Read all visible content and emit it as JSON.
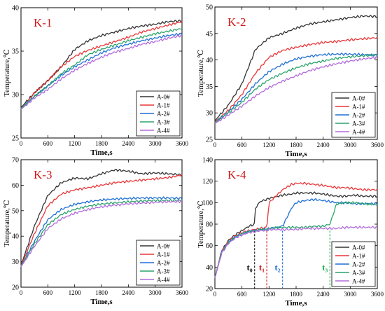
{
  "figure": {
    "colors": {
      "A-0#": "#333333",
      "A-1#": "#e8373a",
      "A-2#": "#1f6fd6",
      "A-3#": "#2aa36b",
      "A-4#": "#b26bdb",
      "label": "#d01818"
    }
  },
  "chart_data": [
    {
      "type": "line",
      "title": "K-1",
      "xlabel": "Time,s",
      "ylabel": "Temperature,℃",
      "xlim": [
        0,
        3600
      ],
      "ylim": [
        25,
        40
      ],
      "xticks": [
        0,
        600,
        1200,
        1800,
        2400,
        3000,
        3600
      ],
      "yticks": [
        25,
        30,
        35,
        40
      ],
      "legend_position": "bottom-right",
      "x": [
        0,
        300,
        600,
        900,
        1200,
        1500,
        1800,
        2100,
        2400,
        2700,
        3000,
        3300,
        3600
      ],
      "series": [
        {
          "name": "A-0#",
          "values": [
            28.5,
            30.2,
            31.6,
            33.2,
            35.2,
            36.2,
            36.8,
            37.2,
            37.6,
            37.9,
            38.1,
            38.4,
            38.5
          ]
        },
        {
          "name": "A-1#",
          "values": [
            28.3,
            30.2,
            31.6,
            33.2,
            34.4,
            35.1,
            35.6,
            36.1,
            36.6,
            37.2,
            37.6,
            38.0,
            38.4
          ]
        },
        {
          "name": "A-2#",
          "values": [
            28.4,
            29.8,
            31.0,
            32.2,
            33.2,
            34.0,
            34.8,
            35.4,
            35.8,
            36.2,
            36.5,
            36.8,
            37.0
          ]
        },
        {
          "name": "A-3#",
          "values": [
            28.4,
            29.8,
            31.0,
            32.4,
            33.4,
            34.6,
            35.2,
            35.7,
            36.2,
            36.6,
            37.0,
            37.3,
            37.6
          ]
        },
        {
          "name": "A-4#",
          "values": [
            28.3,
            29.6,
            30.6,
            31.8,
            32.8,
            33.6,
            34.3,
            34.9,
            35.3,
            35.8,
            36.1,
            36.5,
            36.8
          ]
        }
      ]
    },
    {
      "type": "line",
      "title": "K-2",
      "xlabel": "Time,s",
      "ylabel": "Temperature,℃",
      "xlim": [
        0,
        3600
      ],
      "ylim": [
        25,
        50
      ],
      "xticks": [
        0,
        600,
        1200,
        1800,
        2400,
        3000,
        3600
      ],
      "yticks": [
        25,
        30,
        35,
        40,
        45,
        50
      ],
      "legend_position": "bottom-right",
      "x": [
        0,
        300,
        600,
        900,
        1200,
        1500,
        1800,
        2100,
        2400,
        2700,
        3000,
        3300,
        3600
      ],
      "series": [
        {
          "name": "A-0#",
          "values": [
            28.5,
            31.5,
            35.5,
            42.0,
            44.2,
            45.0,
            46.0,
            46.8,
            47.2,
            47.6,
            48.0,
            48.3,
            48.2
          ]
        },
        {
          "name": "A-1#",
          "values": [
            28.3,
            30.5,
            33.5,
            37.5,
            40.5,
            41.8,
            42.4,
            42.9,
            43.3,
            43.5,
            43.8,
            44.0,
            44.2
          ]
        },
        {
          "name": "A-2#",
          "values": [
            28.2,
            30.2,
            32.6,
            35.5,
            37.8,
            39.2,
            40.2,
            40.7,
            41.0,
            41.1,
            41.1,
            41.0,
            40.9
          ]
        },
        {
          "name": "A-3#",
          "values": [
            28.2,
            30.0,
            32.0,
            34.5,
            36.3,
            37.5,
            38.5,
            39.3,
            39.8,
            40.3,
            40.6,
            40.8,
            41.0
          ]
        },
        {
          "name": "A-4#",
          "values": [
            28.0,
            29.6,
            31.3,
            33.2,
            34.8,
            36.0,
            37.0,
            38.0,
            38.7,
            39.3,
            39.8,
            40.2,
            40.5
          ]
        }
      ]
    },
    {
      "type": "line",
      "title": "K-3",
      "xlabel": "Time,s",
      "ylabel": "Temperature,℃",
      "xlim": [
        0,
        3600
      ],
      "ylim": [
        20,
        70
      ],
      "xticks": [
        0,
        600,
        1200,
        1800,
        2400,
        3000,
        3600
      ],
      "yticks": [
        20,
        30,
        40,
        50,
        60,
        70
      ],
      "legend_position": "bottom-right",
      "x": [
        0,
        300,
        600,
        900,
        1200,
        1500,
        1800,
        2100,
        2400,
        2700,
        3000,
        3300,
        3600
      ],
      "series": [
        {
          "name": "A-0#",
          "values": [
            28.5,
            44.0,
            56.0,
            61.0,
            62.8,
            62.5,
            64.5,
            66.0,
            65.5,
            64.5,
            64.8,
            64.5,
            64.0
          ]
        },
        {
          "name": "A-1#",
          "values": [
            28.3,
            41.0,
            52.0,
            56.5,
            58.2,
            59.0,
            60.0,
            61.0,
            61.5,
            62.0,
            62.5,
            63.0,
            64.0
          ]
        },
        {
          "name": "A-2#",
          "values": [
            28.2,
            38.0,
            46.5,
            50.5,
            52.5,
            53.5,
            54.2,
            54.6,
            54.8,
            55.0,
            55.0,
            55.0,
            54.8
          ]
        },
        {
          "name": "A-3#",
          "values": [
            28.2,
            37.0,
            44.5,
            48.5,
            50.5,
            51.8,
            52.6,
            53.1,
            53.5,
            53.8,
            54.0,
            54.0,
            54.0
          ]
        },
        {
          "name": "A-4#",
          "values": [
            28.0,
            36.0,
            43.0,
            46.8,
            49.0,
            50.5,
            51.5,
            52.2,
            52.7,
            53.0,
            53.3,
            53.5,
            53.6
          ]
        }
      ]
    },
    {
      "type": "line",
      "title": "K-4",
      "xlabel": "Time,s",
      "ylabel": "Temperature,℃",
      "xlim": [
        0,
        3600
      ],
      "ylim": [
        20,
        140
      ],
      "xticks": [
        0,
        600,
        1200,
        1800,
        2400,
        3000,
        3600
      ],
      "yticks": [
        20,
        40,
        60,
        80,
        100,
        120,
        140
      ],
      "legend_position": "bottom-right",
      "x": [
        0,
        150,
        300,
        450,
        600,
        750,
        880,
        900,
        1000,
        1150,
        1200,
        1400,
        1500,
        1700,
        1800,
        2000,
        2200,
        2400,
        2550,
        2700,
        2900,
        3100,
        3300,
        3600
      ],
      "series": [
        {
          "name": "A-0#",
          "values": [
            30,
            55,
            65,
            70,
            74,
            78,
            80,
            95,
            101,
            103,
            104,
            106,
            107,
            108,
            109,
            109,
            109,
            108,
            107,
            106,
            106,
            107,
            106,
            106
          ]
        },
        {
          "name": "A-1#",
          "values": [
            30,
            55,
            64,
            69,
            72,
            74,
            75,
            75,
            76,
            77,
            100,
            108,
            112,
            117,
            118,
            118,
            117,
            116,
            115,
            114,
            114,
            113,
            112,
            112
          ]
        },
        {
          "name": "A-2#",
          "values": [
            30,
            54,
            63,
            68,
            71,
            73,
            74,
            74,
            75,
            75,
            76,
            77,
            78,
            95,
            100,
            102,
            103,
            102,
            101,
            100,
            100,
            99,
            99,
            99
          ]
        },
        {
          "name": "A-3#",
          "values": [
            30,
            54,
            63,
            68,
            71,
            73,
            74,
            74,
            75,
            75,
            76,
            77,
            77,
            77,
            77,
            77,
            78,
            78,
            80,
            99,
            100,
            100,
            99,
            98
          ]
        },
        {
          "name": "A-4#",
          "values": [
            30,
            53,
            62,
            67,
            70,
            72,
            73,
            73,
            74,
            74,
            75,
            75,
            75,
            75,
            75,
            76,
            76,
            76,
            76,
            76,
            77,
            77,
            77,
            77
          ]
        }
      ],
      "annotations": [
        {
          "label": "t₀",
          "x": 880,
          "color": "#111111"
        },
        {
          "label": "t₁",
          "x": 1150,
          "color": "#d01818"
        },
        {
          "label": "t₂",
          "x": 1500,
          "color": "#1f6fd6"
        },
        {
          "label": "t₃",
          "x": 2550,
          "color": "#22b14c"
        }
      ]
    }
  ]
}
